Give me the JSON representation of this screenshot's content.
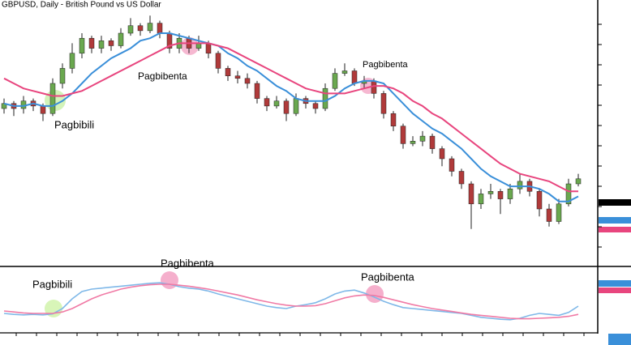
{
  "chart_data": {
    "type": "candlestick",
    "title": "GBPUSD, Daily - British Pound vs US Dollar",
    "ylim": [
      0,
      100
    ],
    "bull_color": "#6aa84f",
    "bear_color": "#b03a3a",
    "open": [
      60,
      62,
      60,
      63,
      61,
      58,
      70,
      76,
      82,
      88,
      84,
      87,
      85,
      90,
      93,
      91,
      94,
      90,
      84,
      88,
      84,
      86,
      82,
      76,
      73,
      72,
      70,
      64,
      61,
      63,
      58,
      64,
      62,
      60,
      68,
      74,
      75,
      70,
      71,
      66,
      58,
      53,
      46,
      47,
      49,
      44,
      40,
      35,
      30,
      22,
      26,
      27,
      24,
      28,
      31,
      27,
      20,
      15,
      22,
      30
    ],
    "high": [
      64,
      63,
      65,
      64,
      62,
      72,
      78,
      86,
      90,
      89,
      89,
      88,
      92,
      96,
      94,
      97,
      95,
      91,
      90,
      89,
      89,
      87,
      83,
      77,
      75,
      74,
      71,
      65,
      65,
      64,
      66,
      65,
      63,
      70,
      76,
      78,
      76,
      73,
      72,
      67,
      59,
      54,
      49,
      51,
      50,
      45,
      41,
      36,
      31,
      28,
      30,
      28,
      30,
      34,
      32,
      28,
      22,
      24,
      32,
      34
    ],
    "low": [
      58,
      57,
      58,
      59,
      55,
      57,
      68,
      74,
      80,
      82,
      82,
      83,
      84,
      89,
      89,
      90,
      88,
      82,
      82,
      82,
      83,
      80,
      74,
      71,
      70,
      68,
      62,
      59,
      60,
      55,
      57,
      60,
      58,
      59,
      67,
      73,
      69,
      68,
      64,
      56,
      51,
      44,
      45,
      45,
      42,
      37,
      33,
      28,
      12,
      20,
      24,
      18,
      22,
      26,
      25,
      17,
      13,
      14,
      21,
      29
    ],
    "close": [
      62,
      60,
      63,
      61,
      58,
      70,
      76,
      82,
      88,
      84,
      87,
      85,
      90,
      93,
      91,
      94,
      90,
      84,
      88,
      84,
      86,
      82,
      76,
      73,
      72,
      70,
      64,
      61,
      63,
      58,
      64,
      62,
      60,
      68,
      74,
      75,
      70,
      71,
      66,
      58,
      53,
      46,
      47,
      49,
      44,
      40,
      35,
      30,
      22,
      26,
      27,
      24,
      28,
      31,
      27,
      20,
      15,
      22,
      30,
      32
    ],
    "series": [
      {
        "color": "#3a8fd9",
        "values": [
          62,
          61,
          61,
          62,
          61,
          61,
          63,
          66,
          70,
          74,
          77,
          80,
          82,
          84,
          87,
          88,
          90,
          90,
          89,
          88,
          87,
          86,
          85,
          82,
          80,
          77,
          75,
          72,
          69,
          67,
          64,
          63,
          63,
          63,
          65,
          68,
          70,
          71,
          71,
          70,
          66,
          62,
          58,
          55,
          52,
          50,
          47,
          44,
          40,
          36,
          33,
          31,
          29,
          29,
          29,
          28,
          26,
          23,
          23,
          25
        ]
      },
      {
        "color": "#e8457e",
        "values": [
          72,
          70,
          68,
          67,
          66,
          65,
          65,
          66,
          67,
          69,
          71,
          73,
          75,
          77,
          79,
          81,
          83,
          85,
          86,
          86,
          86,
          86,
          85,
          84,
          82,
          80,
          78,
          76,
          74,
          72,
          70,
          68,
          67,
          66,
          66,
          66,
          67,
          68,
          69,
          69,
          68,
          66,
          63,
          61,
          58,
          56,
          53,
          50,
          47,
          44,
          41,
          38,
          36,
          34,
          33,
          32,
          31,
          29,
          27,
          27
        ]
      }
    ],
    "annotations": [
      "Pagbibili",
      "Pagbibenta",
      "Pagbibenta"
    ],
    "oscillator": {
      "ylim": [
        0,
        100
      ],
      "series": [
        {
          "color": "#7fb8e8",
          "values": [
            30,
            28,
            27,
            28,
            27,
            29,
            40,
            60,
            75,
            80,
            82,
            84,
            86,
            88,
            90,
            92,
            93,
            90,
            85,
            82,
            80,
            76,
            70,
            65,
            60,
            55,
            50,
            45,
            42,
            40,
            45,
            48,
            52,
            60,
            70,
            76,
            78,
            72,
            64,
            55,
            48,
            42,
            40,
            38,
            36,
            34,
            32,
            30,
            26,
            22,
            20,
            18,
            17,
            20,
            26,
            30,
            28,
            26,
            32,
            45
          ]
        },
        {
          "color": "#f07aa5",
          "values": [
            35,
            33,
            31,
            30,
            30,
            30,
            33,
            40,
            50,
            60,
            68,
            74,
            80,
            84,
            87,
            89,
            90,
            90,
            88,
            86,
            83,
            80,
            76,
            72,
            68,
            63,
            58,
            54,
            50,
            47,
            45,
            45,
            46,
            50,
            56,
            62,
            66,
            68,
            67,
            63,
            58,
            53,
            48,
            44,
            40,
            37,
            34,
            31,
            28,
            26,
            24,
            22,
            20,
            19,
            19,
            20,
            21,
            22,
            24,
            28
          ]
        }
      ],
      "annotations": [
        "Pagbibili",
        "Pagbibenta",
        "Pagbibenta"
      ]
    }
  }
}
